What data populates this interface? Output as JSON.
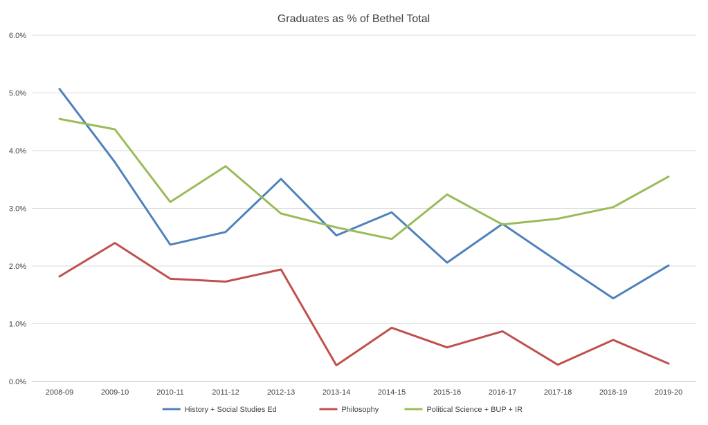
{
  "chart_data": {
    "type": "line",
    "title": "Graduates as % of Bethel Total",
    "xlabel": "",
    "ylabel": "",
    "categories": [
      "2008-09",
      "2009-10",
      "2010-11",
      "2011-12",
      "2012-13",
      "2013-14",
      "2014-15",
      "2015-16",
      "2016-17",
      "2017-18",
      "2018-19",
      "2019-20"
    ],
    "ylim": [
      0,
      6
    ],
    "yticks": [
      0,
      1,
      2,
      3,
      4,
      5,
      6
    ],
    "ytick_labels": [
      "0.0%",
      "1.0%",
      "2.0%",
      "3.0%",
      "4.0%",
      "5.0%",
      "6.0%"
    ],
    "grid": true,
    "legend_position": "bottom",
    "series": [
      {
        "name": "History + Social Studies Ed",
        "color": "#4f81bd",
        "values": [
          5.07,
          3.8,
          2.37,
          2.59,
          3.51,
          2.53,
          2.93,
          2.06,
          2.73,
          2.08,
          1.44,
          2.01
        ]
      },
      {
        "name": "Philosophy",
        "color": "#c0504d",
        "values": [
          1.82,
          2.4,
          1.78,
          1.73,
          1.94,
          0.28,
          0.93,
          0.59,
          0.87,
          0.29,
          0.72,
          0.31
        ]
      },
      {
        "name": "Political Science + BUP + IR",
        "color": "#9bbb59",
        "values": [
          4.55,
          4.37,
          3.11,
          3.73,
          2.91,
          2.67,
          2.47,
          3.24,
          2.72,
          2.82,
          3.02,
          3.55
        ]
      }
    ]
  }
}
